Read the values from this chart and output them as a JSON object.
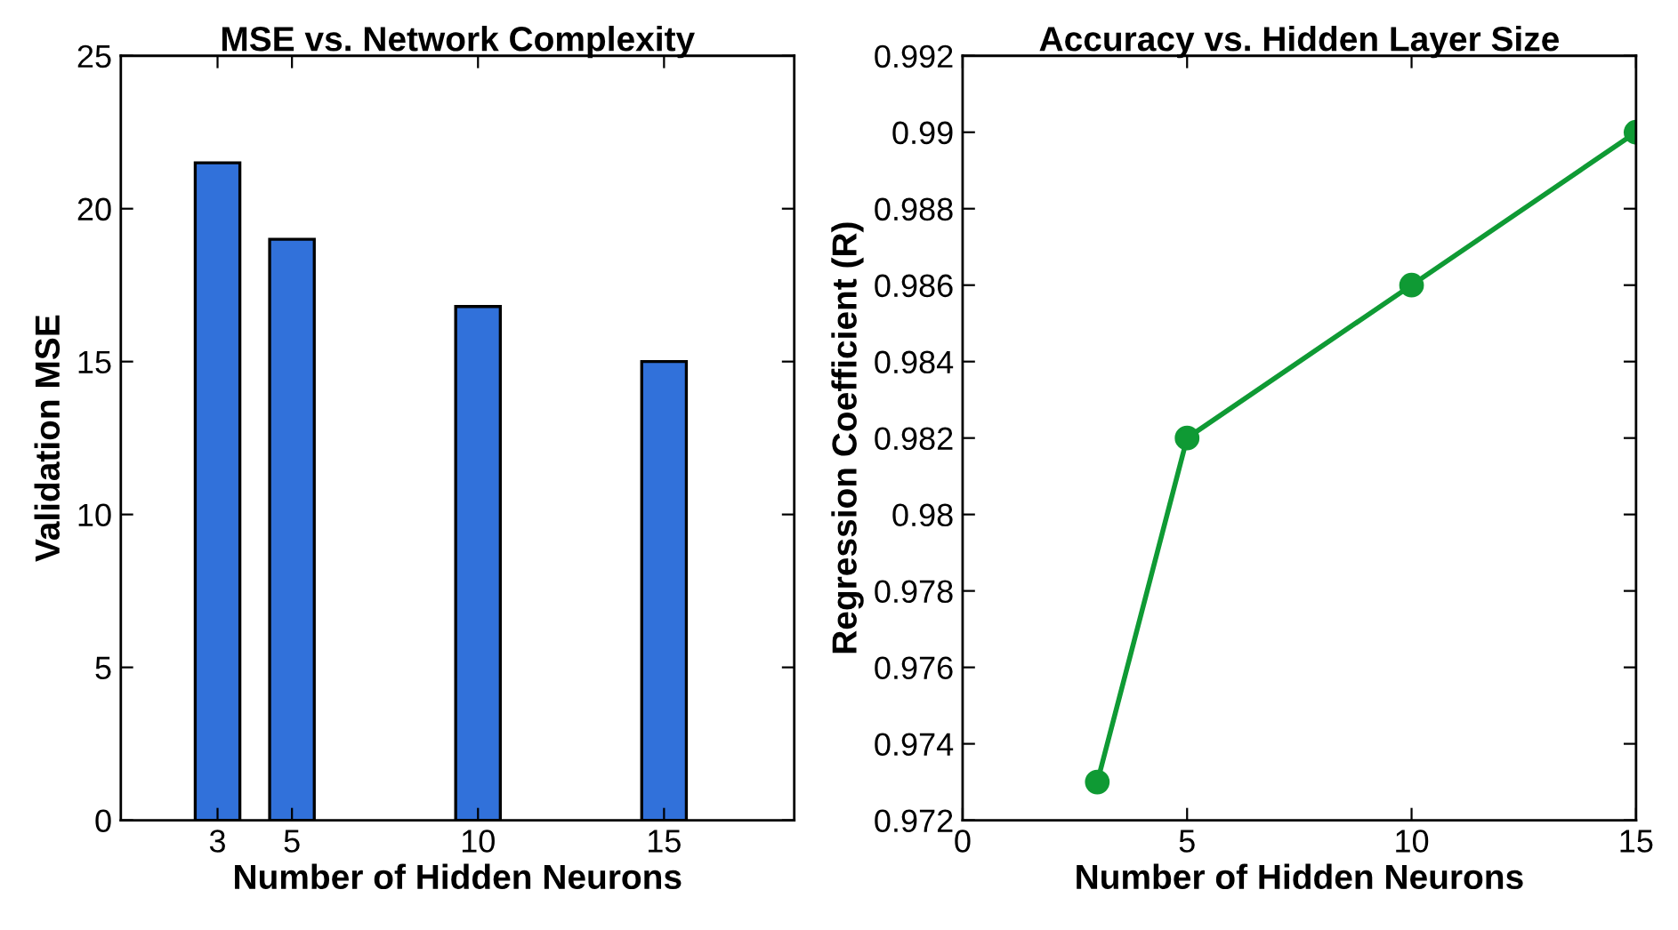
{
  "chart_data": [
    {
      "type": "bar",
      "title": "MSE vs. Network Complexity",
      "xlabel": "Number of Hidden Neurons",
      "ylabel": "Validation MSE",
      "x": [
        3,
        5,
        10,
        15
      ],
      "values": [
        21.5,
        19,
        16.8,
        15
      ],
      "color": "#3171da",
      "xlim": [
        0.4,
        18.5
      ],
      "xticks": [
        3,
        5,
        10,
        15
      ],
      "ylim": [
        0,
        25
      ],
      "yticks": [
        0,
        5,
        10,
        15,
        20,
        25
      ],
      "grid": false,
      "legend": false
    },
    {
      "type": "line",
      "title": "Accuracy vs. Hidden Layer Size",
      "xlabel": "Number of Hidden Neurons",
      "ylabel": "Regression Coefficient (R)",
      "x": [
        3,
        5,
        10,
        15
      ],
      "values": [
        0.973,
        0.982,
        0.986,
        0.99
      ],
      "color": "#0f9a34",
      "marker": "circle",
      "line_style": "solid",
      "xlim": [
        0,
        15
      ],
      "xticks": [
        0,
        5,
        10,
        15
      ],
      "ylim": [
        0.972,
        0.992
      ],
      "yticks": [
        0.972,
        0.974,
        0.976,
        0.978,
        0.98,
        0.982,
        0.984,
        0.986,
        0.988,
        0.99,
        0.992
      ],
      "grid": false,
      "legend": false
    }
  ]
}
